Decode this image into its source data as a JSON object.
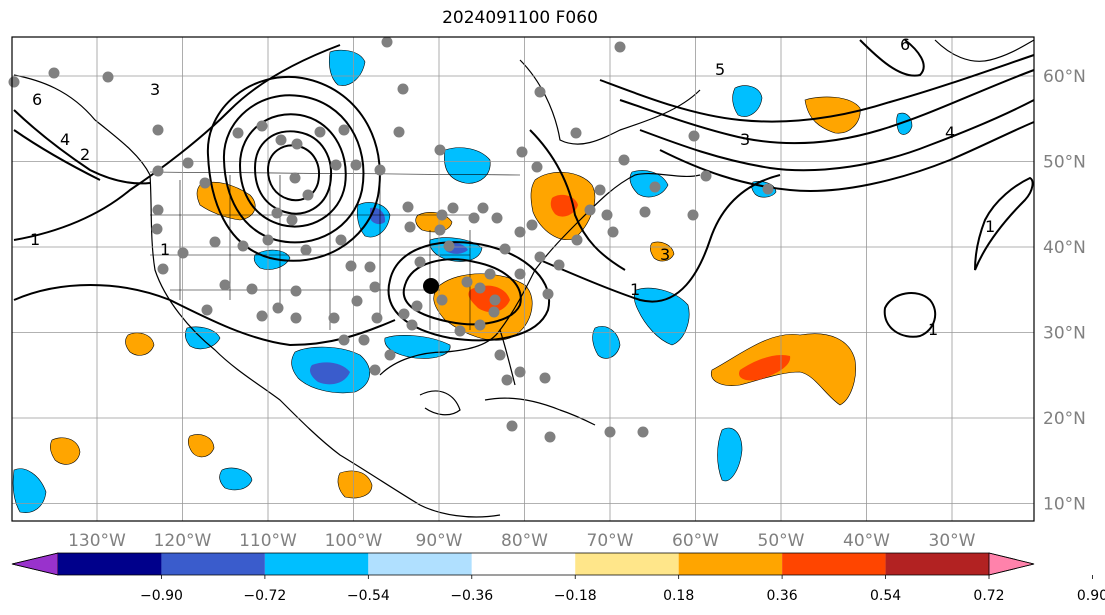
{
  "title": "2024091100 F060",
  "map": {
    "lon_ticks": [
      {
        "value": -130,
        "label": "130°W"
      },
      {
        "value": -120,
        "label": "120°W"
      },
      {
        "value": -110,
        "label": "110°W"
      },
      {
        "value": -100,
        "label": "100°W"
      },
      {
        "value": -90,
        "label": "90°W"
      },
      {
        "value": -80,
        "label": "80°W"
      },
      {
        "value": -70,
        "label": "70°W"
      },
      {
        "value": -60,
        "label": "60°W"
      },
      {
        "value": -50,
        "label": "50°W"
      },
      {
        "value": -40,
        "label": "40°W"
      },
      {
        "value": -30,
        "label": "30°W"
      }
    ],
    "lat_ticks": [
      {
        "value": 60,
        "label": "60°N"
      },
      {
        "value": 50,
        "label": "50°N"
      },
      {
        "value": 40,
        "label": "40°N"
      },
      {
        "value": 30,
        "label": "30°N"
      },
      {
        "value": 20,
        "label": "20°N"
      },
      {
        "value": 10,
        "label": "10°N"
      }
    ],
    "grid": true,
    "contour_labels": [
      "1",
      "1",
      "1",
      "1",
      "2",
      "3",
      "4",
      "5",
      "6",
      "6",
      "3",
      "1",
      "4",
      "3"
    ],
    "marker_colors": {
      "station": "#808080",
      "focus": "#000000"
    }
  },
  "colorbar": {
    "colors": [
      "#9932cc",
      "#00008b",
      "#3a5ccc",
      "#00bfff",
      "#b0e0ff",
      "#ffffff",
      "#ffe68a",
      "#ffa500",
      "#ff4500",
      "#b22222",
      "#ff82ab"
    ],
    "labels": [
      "−0.90",
      "−0.72",
      "−0.54",
      "−0.36",
      "−0.18",
      "0.18",
      "0.36",
      "0.54",
      "0.72",
      "0.90"
    ],
    "extend": "both"
  }
}
